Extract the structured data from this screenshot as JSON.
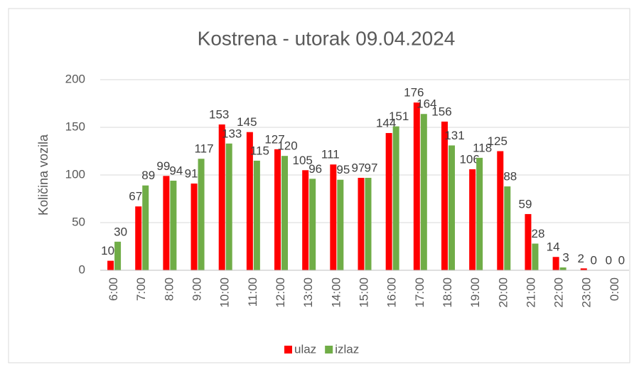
{
  "chart_data": {
    "type": "bar",
    "title": "Kostrena - utorak 09.04.2024",
    "y_label": "Količina vozila",
    "categories": [
      "6:00",
      "7:00",
      "8:00",
      "9:00",
      "10:00",
      "11:00",
      "12:00",
      "13:00",
      "14:00",
      "15:00",
      "16:00",
      "17:00",
      "18:00",
      "19:00",
      "20:00",
      "21:00",
      "22:00",
      "23:00",
      "0:00"
    ],
    "series": [
      {
        "name": "ulaz",
        "color": "#ff0000",
        "values": [
          10,
          67,
          99,
          91,
          153,
          145,
          127,
          105,
          111,
          97,
          144,
          176,
          156,
          106,
          125,
          59,
          14,
          2,
          0
        ]
      },
      {
        "name": "izlaz",
        "color": "#70ad47",
        "values": [
          30,
          89,
          94,
          117,
          133,
          115,
          120,
          96,
          95,
          97,
          151,
          164,
          131,
          118,
          88,
          28,
          3,
          0,
          0
        ]
      }
    ],
    "ylim": [
      0,
      200
    ],
    "yticks": [
      0,
      50,
      100,
      150,
      200
    ],
    "grid": true,
    "legend": "bottom"
  }
}
